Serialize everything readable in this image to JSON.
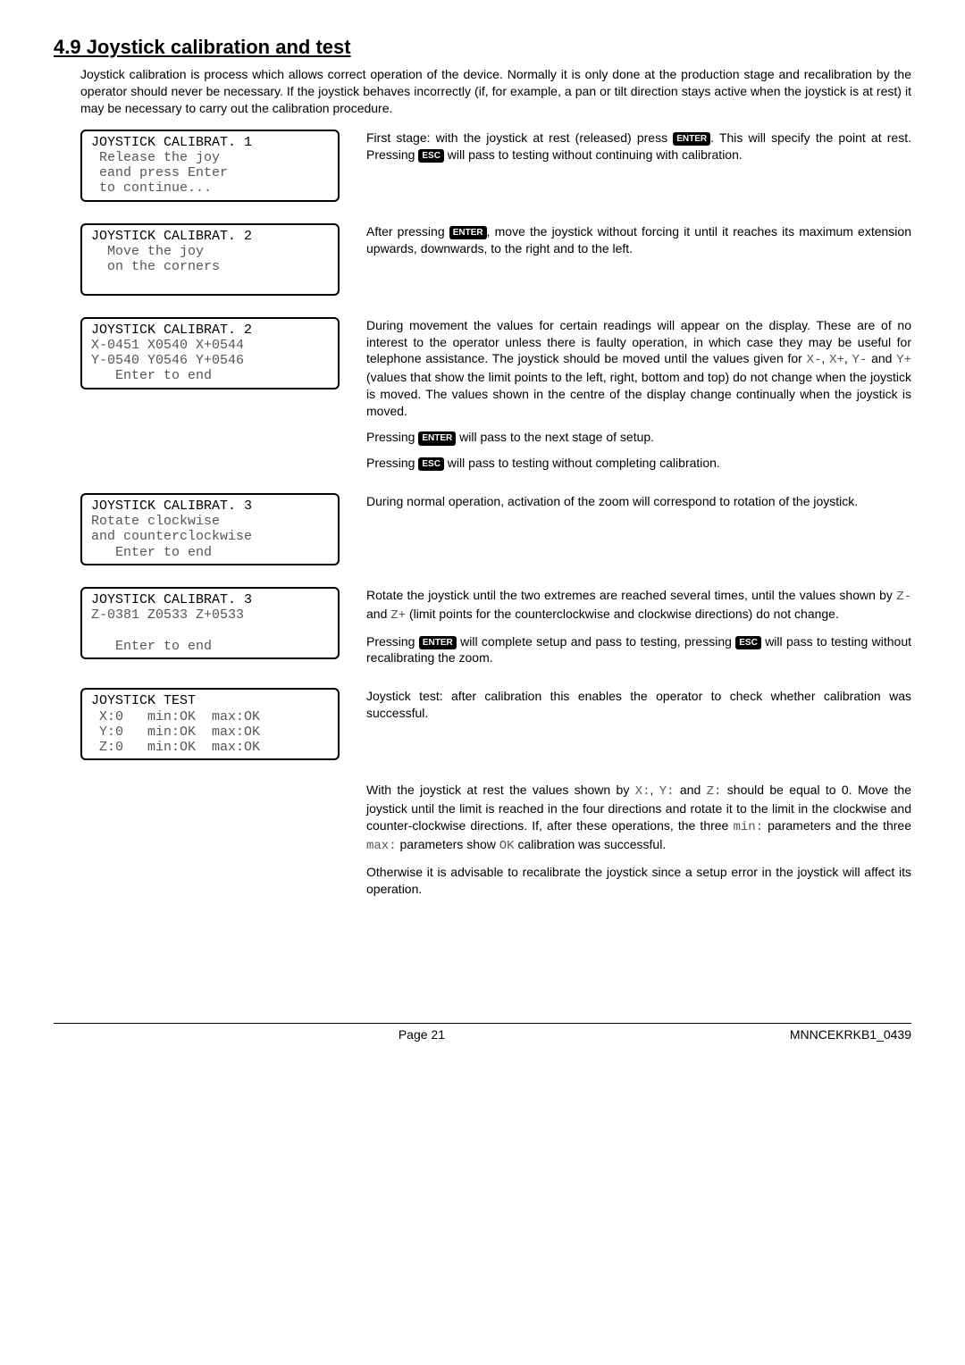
{
  "section_title": "4.9 Joystick calibration and test",
  "intro": "Joystick calibration is process which allows correct operation of the device. Normally it is only done at the production stage and recalibration by the operator should never be necessary. If the joystick behaves incorrectly (if, for example, a pan or tilt direction stays active when the joystick is at rest) it may be necessary to carry out the calibration procedure.",
  "lcd1": {
    "l1": "JOYSTICK CALIBRAT. 1",
    "l2": " Release the joy",
    "l3": " eand press Enter",
    "l4": " to continue..."
  },
  "lcd2": {
    "l1": "JOYSTICK CALIBRAT. 2",
    "l2": "  Move the joy",
    "l3": "  on the corners",
    "l4": " "
  },
  "lcd3": {
    "l1": "JOYSTICK CALIBRAT. 2",
    "l2": "X-0451 X0540 X+0544",
    "l3": "Y-0540 Y0546 Y+0546",
    "l4": "   Enter to end"
  },
  "lcd4": {
    "l1": "JOYSTICK CALIBRAT. 3",
    "l2": "Rotate clockwise",
    "l3": "and counterclockwise",
    "l4": "   Enter to end"
  },
  "lcd5": {
    "l1": "JOYSTICK CALIBRAT. 3",
    "l2": "Z-0381 Z0533 Z+0533",
    "l3": " ",
    "l4": "   Enter to end"
  },
  "lcd6": {
    "l1": "JOYSTICK TEST",
    "l2": " X:0   min:OK  max:OK",
    "l3": " Y:0   min:OK  max:OK",
    "l4": " Z:0   min:OK  max:OK"
  },
  "p1a": "First stage: with the joystick at rest (released) press ",
  "p1b": ". This will specify the point at rest. Pressing ",
  "p1c": " will pass to testing without continuing with calibration.",
  "p2a": "After pressing ",
  "p2b": ", move the joystick without forcing it until it reaches its maximum extension upwards, downwards, to the right and to the left.",
  "p3a": "During movement the values for certain readings will appear on the display. These are of no interest to the operator unless there is faulty operation, in which case they may be useful for telephone assistance. The joystick should be moved until the values given for ",
  "p3b": " (values that show the limit points to the left, right, bottom and top) do not change when the joystick is moved. The values shown in the centre of the display change continually when the joystick is moved.",
  "p3c": "Pressing ",
  "p3d": " will pass to the next stage of setup.",
  "p3e": "Pressing ",
  "p3f": " will pass to testing without completing calibration.",
  "p4": "During normal operation, activation of the zoom will correspond to rotation of the joystick.",
  "p5a": "Rotate the joystick until the two extremes are reached several times, until the values shown by ",
  "p5b": " (limit points for the counterclockwise and clockwise directions) do not change.",
  "p5c": "Pressing ",
  "p5d": " will complete setup and pass to testing, pressing ",
  "p5e": " will pass to testing without recalibrating the zoom.",
  "p6": "Joystick test: after calibration this enables the operator to check whether calibration was successful.",
  "p7a": "With the joystick at rest the values shown by ",
  "p7b": " should be equal to 0. Move the joystick until the limit is reached in the four directions and rotate it to the limit in the clockwise and counter-clockwise directions. If, after these operations, the three ",
  "p7c": " parameters and the three ",
  "p7d": " parameters show ",
  "p7e": " calibration was successful.",
  "p8": "Otherwise it is advisable to recalibrate the joystick since a setup error in the joystick will affect its operation.",
  "keys": {
    "enter": "ENTER",
    "esc": "ESC"
  },
  "mono_tokens": {
    "xminus": "X-",
    "xplus": "X+",
    "yminus": "Y-",
    "yplus": "Y+",
    "zminus": "Z-",
    "zplus": "Z+",
    "xcolon": "X:",
    "ycolon": "Y:",
    "zcolon": "Z:",
    "mincolon": "min:",
    "maxcolon": "max:",
    "ok": "OK",
    "and": " and ",
    "comma_and": ", "
  },
  "footer": {
    "page": "Page 21",
    "ref": "MNNCEKRKB1_0439"
  }
}
